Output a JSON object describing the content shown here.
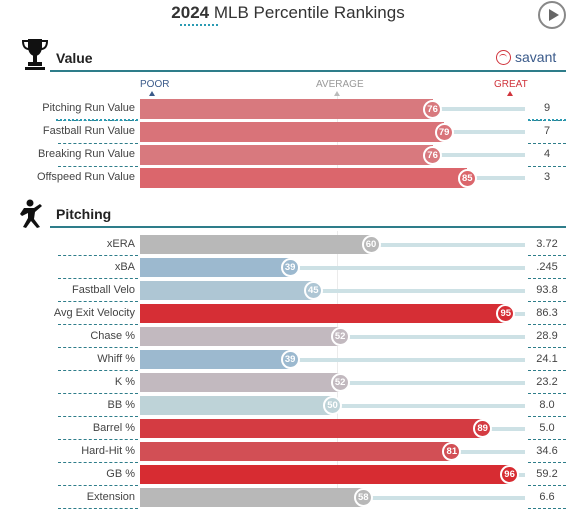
{
  "header": {
    "year": "2024",
    "title": "MLB Percentile Rankings"
  },
  "brand": {
    "name": "savant"
  },
  "scale": {
    "poor": "POOR",
    "average": "AVERAGE",
    "great": "GREAT"
  },
  "colors": {
    "poor": "#3b6fb6",
    "great": "#d8232a",
    "neutral": "#b8b8b8"
  },
  "chart_data": [
    {
      "type": "bar",
      "title": "Value",
      "xlim": [
        0,
        100
      ],
      "categories": [
        "Pitching Run Value",
        "Fastball Run Value",
        "Breaking Run Value",
        "Offspeed Run Value"
      ],
      "percentiles": [
        76,
        79,
        76,
        85
      ],
      "stat_values": [
        "9",
        "7",
        "4",
        "3"
      ]
    },
    {
      "type": "bar",
      "title": "Pitching",
      "xlim": [
        0,
        100
      ],
      "categories": [
        "xERA",
        "xBA",
        "Fastball Velo",
        "Avg Exit Velocity",
        "Chase %",
        "Whiff %",
        "K %",
        "BB %",
        "Barrel %",
        "Hard-Hit %",
        "GB %",
        "Extension"
      ],
      "percentiles": [
        60,
        39,
        45,
        95,
        52,
        39,
        52,
        50,
        89,
        81,
        96,
        58
      ],
      "stat_values": [
        "3.72",
        ".245",
        "93.8",
        "86.3",
        "28.9",
        "24.1",
        "23.2",
        "8.0",
        "5.0",
        "34.6",
        "59.2",
        "6.6"
      ],
      "neutral_categories": [
        "xERA",
        "Extension"
      ]
    }
  ]
}
